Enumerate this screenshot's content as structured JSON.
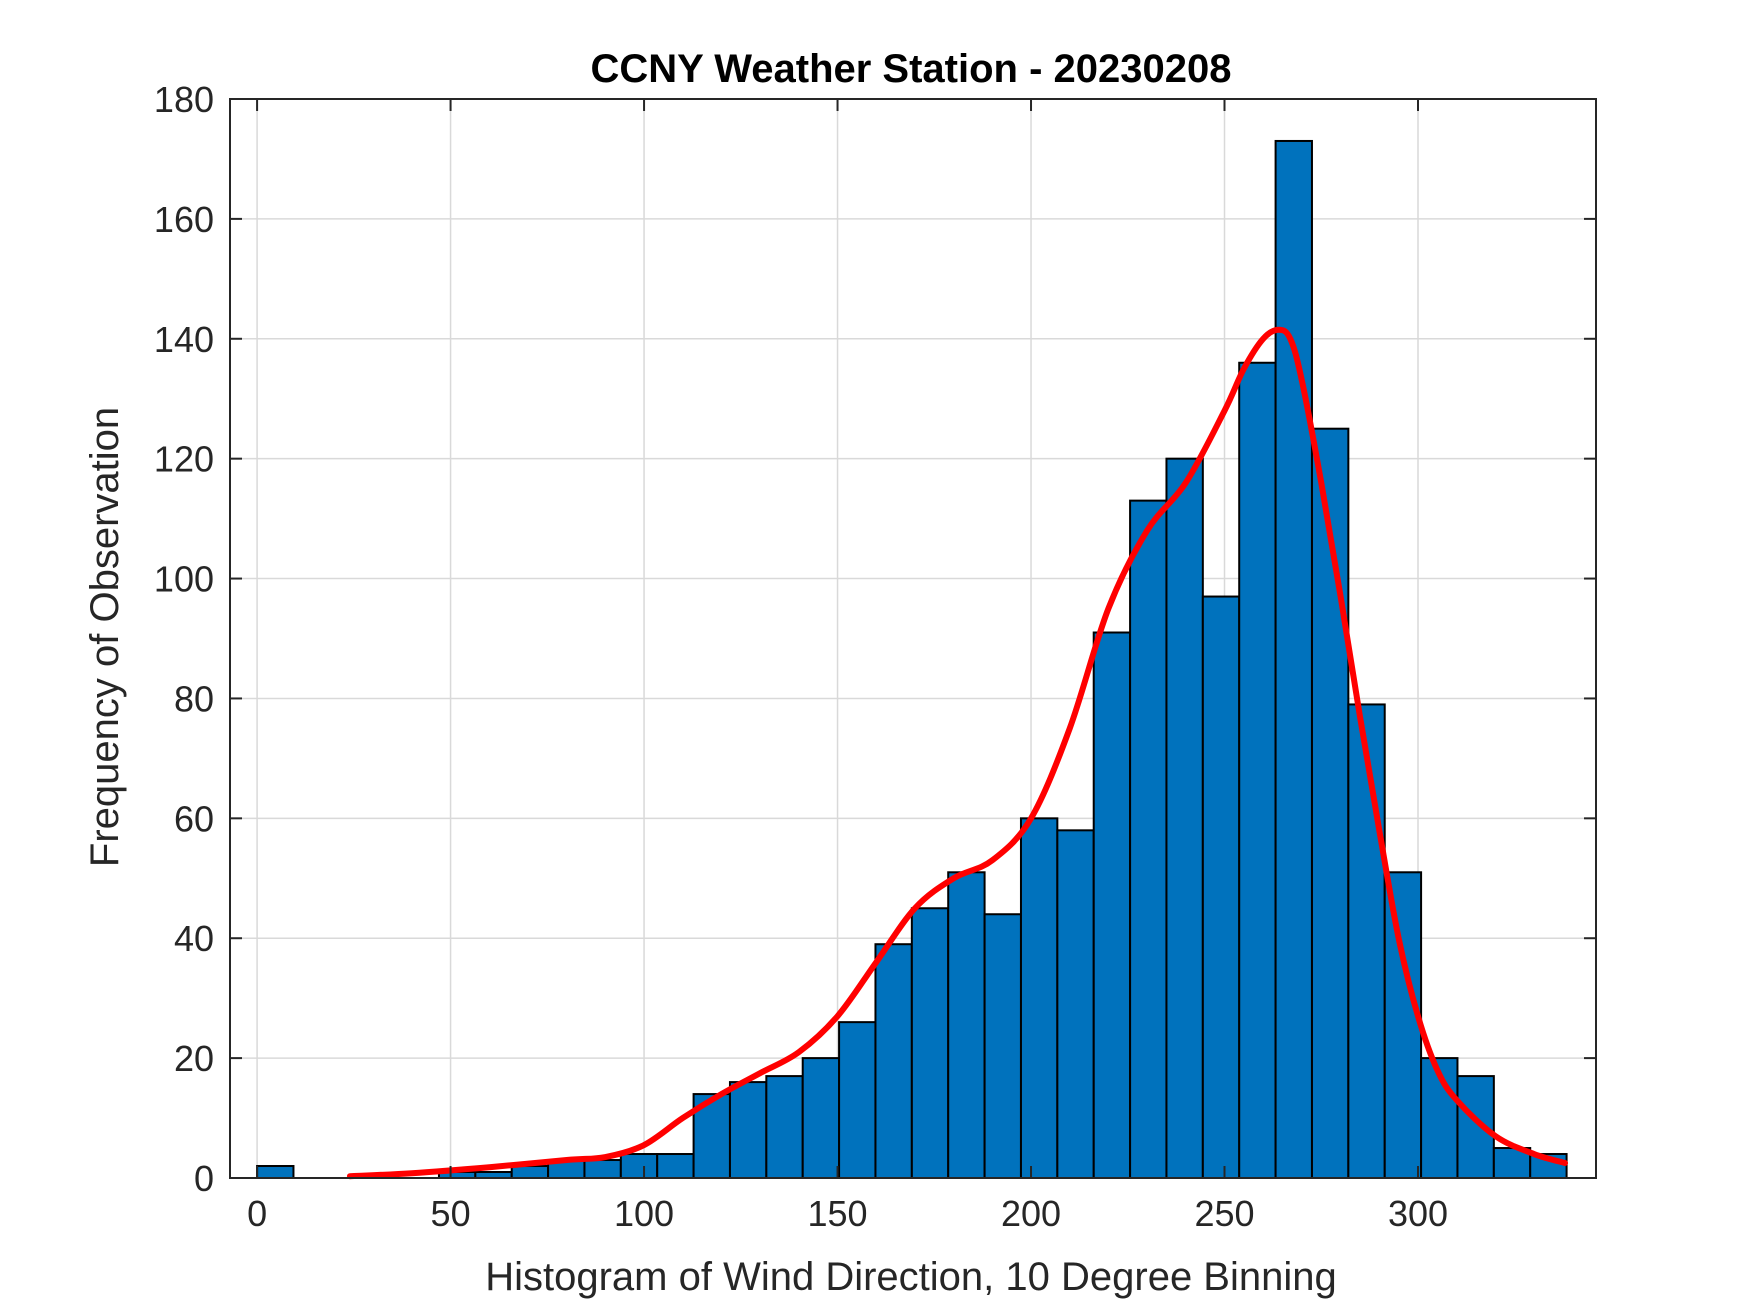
{
  "chart_data": {
    "type": "bar",
    "title": "CCNY Weather Station - 20230208",
    "xlabel": "Histogram of Wind Direction, 10 Degree Binning",
    "ylabel": "Frequency of Observation",
    "xlim": [
      -7,
      346
    ],
    "ylim": [
      0,
      180
    ],
    "xticks": [
      0,
      50,
      100,
      150,
      200,
      250,
      300
    ],
    "yticks": [
      0,
      20,
      40,
      60,
      80,
      100,
      120,
      140,
      160,
      180
    ],
    "grid": true,
    "bin_width": 9.4,
    "bars": [
      {
        "x0": 0,
        "value": 2
      },
      {
        "x0": 47,
        "value": 1
      },
      {
        "x0": 56.4,
        "value": 1
      },
      {
        "x0": 65.8,
        "value": 2
      },
      {
        "x0": 75.2,
        "value": 3
      },
      {
        "x0": 84.6,
        "value": 3
      },
      {
        "x0": 94,
        "value": 4
      },
      {
        "x0": 103.4,
        "value": 4
      },
      {
        "x0": 112.8,
        "value": 14
      },
      {
        "x0": 122.2,
        "value": 16
      },
      {
        "x0": 131.6,
        "value": 17
      },
      {
        "x0": 141,
        "value": 20
      },
      {
        "x0": 150.4,
        "value": 26
      },
      {
        "x0": 159.8,
        "value": 39
      },
      {
        "x0": 169.2,
        "value": 45
      },
      {
        "x0": 178.6,
        "value": 51
      },
      {
        "x0": 188,
        "value": 44
      },
      {
        "x0": 197.4,
        "value": 60
      },
      {
        "x0": 206.8,
        "value": 58
      },
      {
        "x0": 216.2,
        "value": 91
      },
      {
        "x0": 225.6,
        "value": 113
      },
      {
        "x0": 235,
        "value": 120
      },
      {
        "x0": 244.4,
        "value": 97
      },
      {
        "x0": 253.8,
        "value": 136
      },
      {
        "x0": 263.2,
        "value": 173
      },
      {
        "x0": 272.6,
        "value": 125
      },
      {
        "x0": 282,
        "value": 79
      },
      {
        "x0": 291.4,
        "value": 51
      },
      {
        "x0": 300.8,
        "value": 20
      },
      {
        "x0": 310.2,
        "value": 17
      },
      {
        "x0": 319.6,
        "value": 5
      },
      {
        "x0": 329,
        "value": 4
      }
    ],
    "fit_curve": {
      "color": "#FF0000",
      "x": [
        24,
        40,
        60,
        80,
        90,
        100,
        110,
        120,
        130,
        140,
        150,
        160,
        170,
        180,
        190,
        200,
        210,
        220,
        230,
        240,
        250,
        255,
        260,
        264,
        267,
        270,
        275,
        280,
        285,
        290,
        295,
        300,
        305,
        310,
        320,
        330,
        338
      ],
      "y": [
        0.3,
        0.8,
        1.8,
        3,
        3.5,
        5.5,
        10,
        14,
        17.5,
        21,
        27,
        36,
        45,
        50,
        53,
        60,
        75,
        95,
        108,
        116,
        128,
        135,
        140,
        141.5,
        140,
        133,
        116,
        97,
        77,
        58,
        40,
        27,
        18,
        13,
        7,
        4,
        2.5
      ]
    },
    "colors": {
      "bar_fill": "#0072BD",
      "bar_edge": "#000000",
      "fit_line": "#FF0000",
      "grid": "#d9d9d9"
    }
  }
}
